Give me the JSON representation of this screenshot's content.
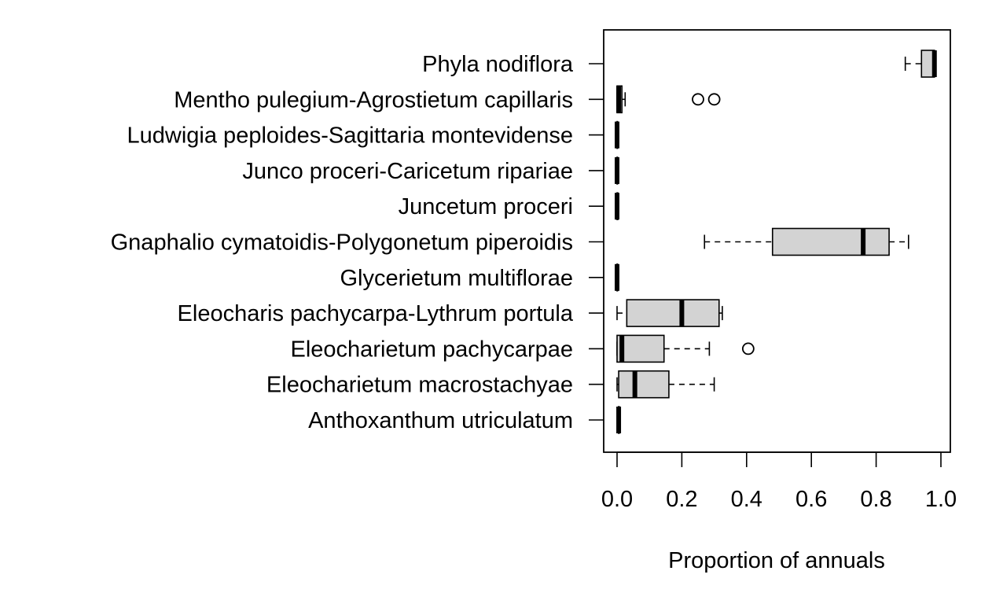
{
  "chart_data": {
    "type": "box",
    "orientation": "horizontal",
    "xlabel": "Proportion of annuals",
    "ylabel": "",
    "xlim": [
      0.0,
      1.0
    ],
    "x_ticks": [
      "0.0",
      "0.2",
      "0.4",
      "0.6",
      "0.8",
      "1.0"
    ],
    "x_tick_values": [
      0.0,
      0.2,
      0.4,
      0.6,
      0.8,
      1.0
    ],
    "box_fill": "#d3d3d3",
    "categories": [
      "Phyla nodiflora",
      "Mentho pulegium-Agrostietum capillaris",
      "Ludwigia peploides-Sagittaria montevidense",
      "Junco proceri-Caricetum ripariae",
      "Juncetum proceri",
      "Gnaphalio cymatoidis-Polygonetum piperoidis",
      "Glycerietum multiflorae",
      "Eleocharis pachycarpa-Lythrum portula",
      "Eleocharietum pachycarpae",
      "Eleocharietum macrostachyae",
      "Anthoxanthum utriculatum"
    ],
    "boxes": [
      {
        "min": 0.89,
        "q1": 0.94,
        "median": 0.98,
        "q3": 0.98,
        "max": 0.98,
        "outliers": []
      },
      {
        "min": 0.0,
        "q1": 0.0,
        "median": 0.005,
        "q3": 0.015,
        "max": 0.025,
        "outliers": [
          0.25,
          0.3
        ]
      },
      {
        "min": 0.0,
        "q1": 0.0,
        "median": 0.0,
        "q3": 0.0,
        "max": 0.0,
        "outliers": []
      },
      {
        "min": 0.0,
        "q1": 0.0,
        "median": 0.0,
        "q3": 0.0,
        "max": 0.0,
        "outliers": []
      },
      {
        "min": 0.0,
        "q1": 0.0,
        "median": 0.0,
        "q3": 0.002,
        "max": 0.002,
        "outliers": []
      },
      {
        "min": 0.27,
        "q1": 0.48,
        "median": 0.76,
        "q3": 0.84,
        "max": 0.9,
        "outliers": []
      },
      {
        "min": 0.0,
        "q1": 0.0,
        "median": 0.0,
        "q3": 0.0,
        "max": 0.0,
        "outliers": []
      },
      {
        "min": 0.0,
        "q1": 0.03,
        "median": 0.2,
        "q3": 0.315,
        "max": 0.325,
        "outliers": []
      },
      {
        "min": 0.0,
        "q1": 0.0,
        "median": 0.015,
        "q3": 0.145,
        "max": 0.285,
        "outliers": [
          0.405
        ]
      },
      {
        "min": 0.0,
        "q1": 0.005,
        "median": 0.055,
        "q3": 0.16,
        "max": 0.3,
        "outliers": []
      },
      {
        "min": 0.005,
        "q1": 0.005,
        "median": 0.005,
        "q3": 0.005,
        "max": 0.005,
        "outliers": []
      }
    ]
  }
}
